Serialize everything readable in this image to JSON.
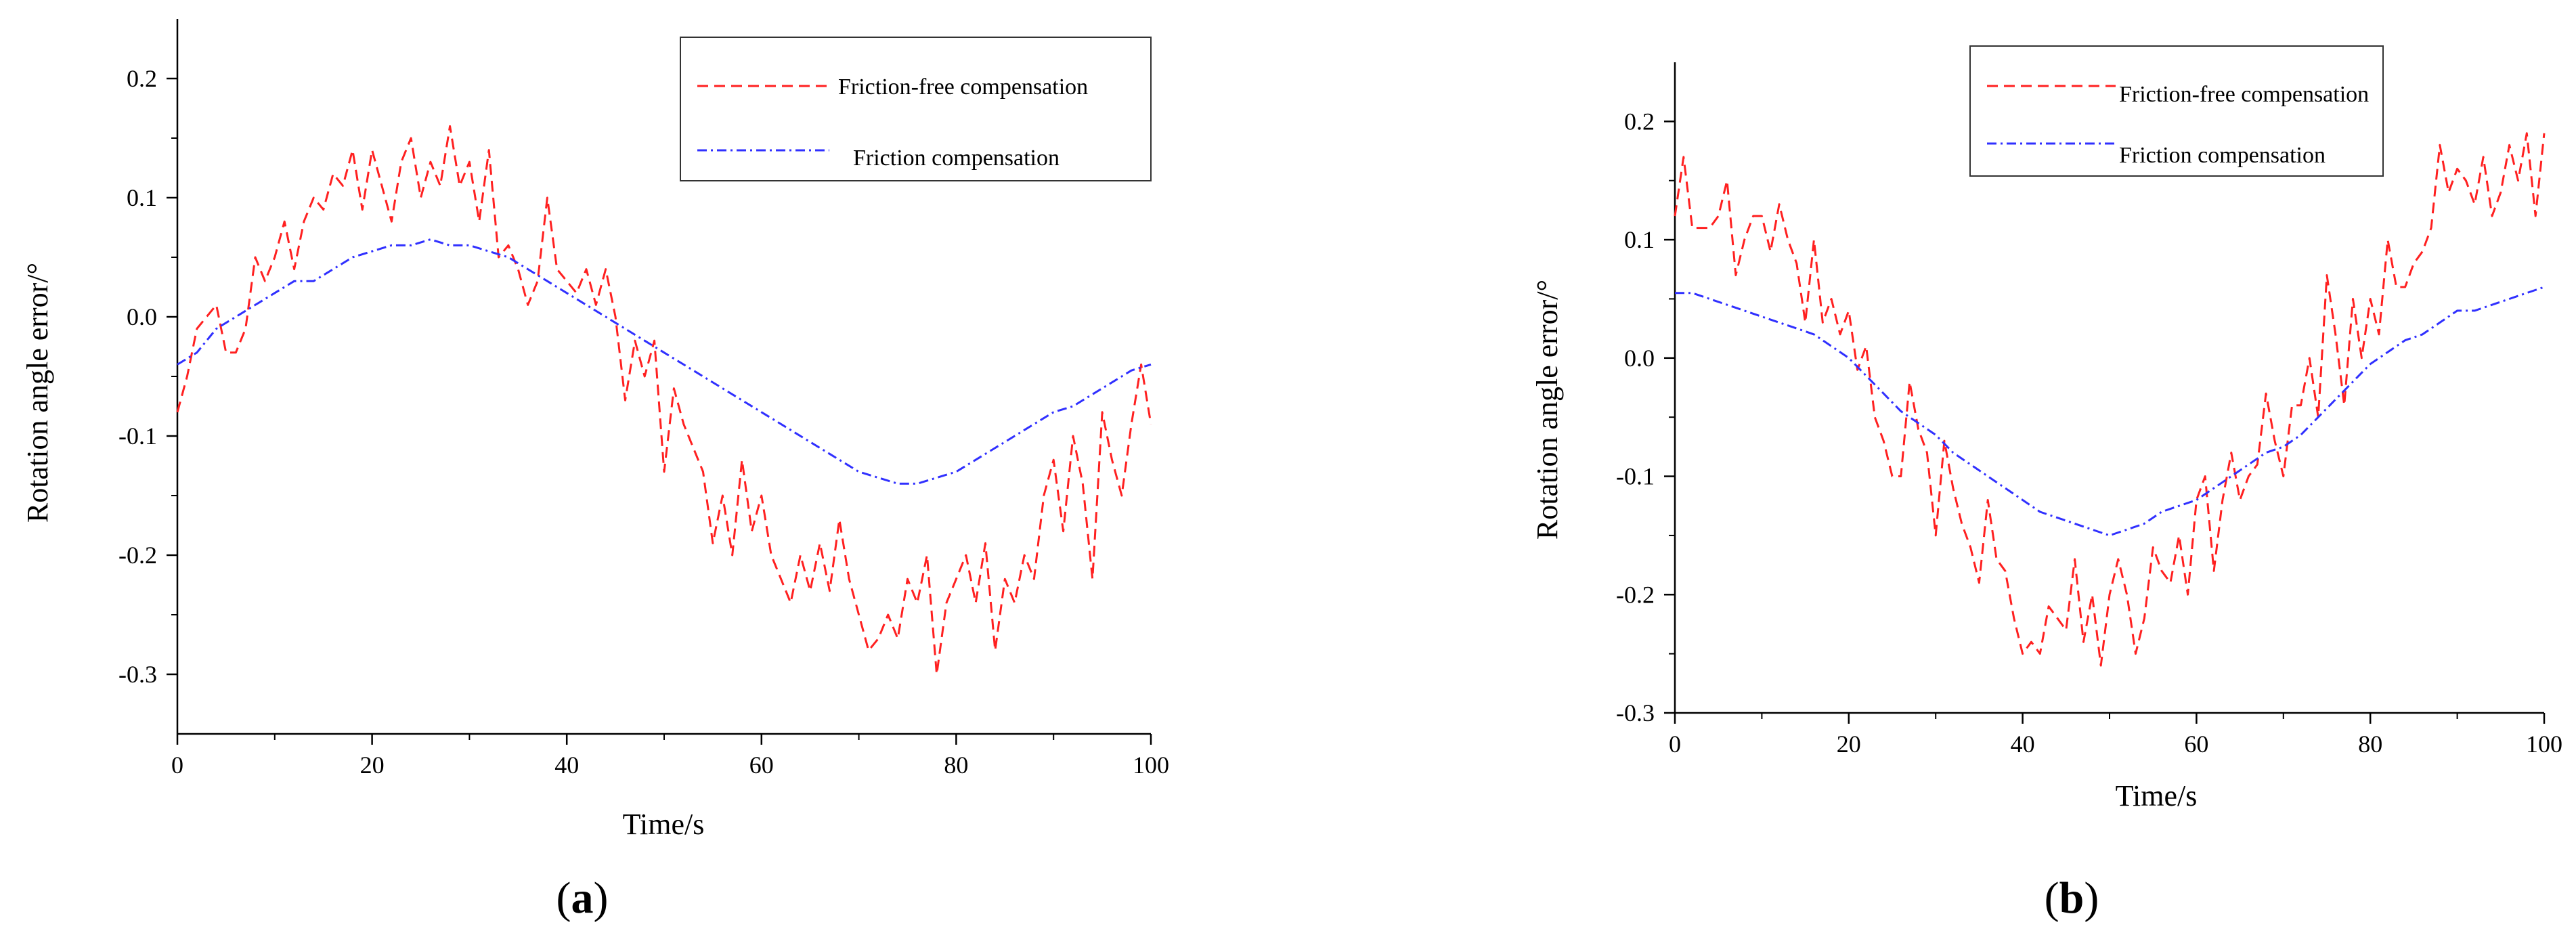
{
  "chart_data": [
    {
      "type": "line",
      "panel_label": "a",
      "xlabel": "Time/s",
      "ylabel": "Rotation angle error/°",
      "xlim": [
        0,
        100
      ],
      "ylim": [
        -0.35,
        0.25
      ],
      "xticks": [
        0,
        20,
        40,
        60,
        80,
        100
      ],
      "xtick_labels": [
        "0",
        "20",
        "40",
        "60",
        "80",
        "100"
      ],
      "yticks": [
        0.2,
        0.1,
        0.0,
        -0.1,
        -0.2,
        -0.3
      ],
      "ytick_labels": [
        "0.2",
        "0.1",
        "0.0",
        "-0.1",
        "-0.2",
        "-0.3"
      ],
      "legend_position": "top-right",
      "series": [
        {
          "name": "Friction-free compensation",
          "color": "#ff2020",
          "style": "dashed",
          "x": [
            0,
            1,
            2,
            3,
            4,
            5,
            6,
            7,
            8,
            9,
            10,
            11,
            12,
            13,
            14,
            15,
            16,
            17,
            18,
            19,
            20,
            21,
            22,
            23,
            24,
            25,
            26,
            27,
            28,
            29,
            30,
            31,
            32,
            33,
            34,
            35,
            36,
            37,
            38,
            39,
            40,
            41,
            42,
            43,
            44,
            45,
            46,
            47,
            48,
            49,
            50,
            51,
            52,
            53,
            54,
            55,
            56,
            57,
            58,
            59,
            60,
            61,
            62,
            63,
            64,
            65,
            66,
            67,
            68,
            69,
            70,
            71,
            72,
            73,
            74,
            75,
            76,
            77,
            78,
            79,
            80,
            81,
            82,
            83,
            84,
            85,
            86,
            87,
            88,
            89,
            90,
            91,
            92,
            93,
            94,
            95,
            96,
            97,
            98,
            99,
            100
          ],
          "y": [
            -0.08,
            -0.05,
            -0.01,
            0.0,
            0.01,
            -0.03,
            -0.03,
            -0.01,
            0.05,
            0.03,
            0.05,
            0.08,
            0.04,
            0.08,
            0.1,
            0.09,
            0.12,
            0.11,
            0.14,
            0.09,
            0.14,
            0.11,
            0.08,
            0.13,
            0.15,
            0.1,
            0.13,
            0.11,
            0.16,
            0.11,
            0.13,
            0.08,
            0.14,
            0.05,
            0.06,
            0.04,
            0.01,
            0.03,
            0.1,
            0.04,
            0.03,
            0.02,
            0.04,
            0.01,
            0.04,
            0.0,
            -0.07,
            -0.02,
            -0.05,
            -0.02,
            -0.13,
            -0.06,
            -0.09,
            -0.11,
            -0.13,
            -0.19,
            -0.15,
            -0.2,
            -0.12,
            -0.18,
            -0.15,
            -0.2,
            -0.22,
            -0.24,
            -0.2,
            -0.23,
            -0.19,
            -0.23,
            -0.17,
            -0.22,
            -0.25,
            -0.28,
            -0.27,
            -0.25,
            -0.27,
            -0.22,
            -0.24,
            -0.2,
            -0.3,
            -0.24,
            -0.22,
            -0.2,
            -0.24,
            -0.19,
            -0.28,
            -0.22,
            -0.24,
            -0.2,
            -0.22,
            -0.15,
            -0.12,
            -0.18,
            -0.1,
            -0.14,
            -0.22,
            -0.08,
            -0.12,
            -0.15,
            -0.09,
            -0.04,
            -0.09
          ]
        },
        {
          "name": "Friction compensation",
          "color": "#3030ff",
          "style": "dash-dot",
          "x": [
            0,
            2,
            4,
            6,
            8,
            10,
            12,
            14,
            16,
            18,
            20,
            22,
            24,
            26,
            28,
            30,
            32,
            34,
            36,
            38,
            40,
            42,
            44,
            46,
            48,
            50,
            52,
            54,
            56,
            58,
            60,
            62,
            64,
            66,
            68,
            70,
            72,
            74,
            76,
            78,
            80,
            82,
            84,
            86,
            88,
            90,
            92,
            94,
            96,
            98,
            100
          ],
          "y": [
            -0.04,
            -0.03,
            -0.01,
            0.0,
            0.01,
            0.02,
            0.03,
            0.03,
            0.04,
            0.05,
            0.055,
            0.06,
            0.06,
            0.065,
            0.06,
            0.06,
            0.055,
            0.05,
            0.04,
            0.03,
            0.02,
            0.01,
            0.0,
            -0.01,
            -0.02,
            -0.03,
            -0.04,
            -0.05,
            -0.06,
            -0.07,
            -0.08,
            -0.09,
            -0.1,
            -0.11,
            -0.12,
            -0.13,
            -0.135,
            -0.14,
            -0.14,
            -0.135,
            -0.13,
            -0.12,
            -0.11,
            -0.1,
            -0.09,
            -0.08,
            -0.075,
            -0.065,
            -0.055,
            -0.045,
            -0.04
          ]
        }
      ]
    },
    {
      "type": "line",
      "panel_label": "b",
      "xlabel": "Time/s",
      "ylabel": "Rotation angle error/°",
      "xlim": [
        0,
        100
      ],
      "ylim": [
        -0.3,
        0.25
      ],
      "xticks": [
        0,
        20,
        40,
        60,
        80,
        100
      ],
      "xtick_labels": [
        "0",
        "20",
        "40",
        "60",
        "80",
        "100"
      ],
      "yticks": [
        0.2,
        0.1,
        0.0,
        -0.1,
        -0.2,
        -0.3
      ],
      "ytick_labels": [
        "0.2",
        "0.1",
        "0.0",
        "-0.1",
        "-0.2",
        "-0.3"
      ],
      "legend_position": "top-right",
      "series": [
        {
          "name": "Friction-free compensation",
          "color": "#ff2020",
          "style": "dashed",
          "x": [
            0,
            1,
            2,
            3,
            4,
            5,
            6,
            7,
            8,
            9,
            10,
            11,
            12,
            13,
            14,
            15,
            16,
            17,
            18,
            19,
            20,
            21,
            22,
            23,
            24,
            25,
            26,
            27,
            28,
            29,
            30,
            31,
            32,
            33,
            34,
            35,
            36,
            37,
            38,
            39,
            40,
            41,
            42,
            43,
            44,
            45,
            46,
            47,
            48,
            49,
            50,
            51,
            52,
            53,
            54,
            55,
            56,
            57,
            58,
            59,
            60,
            61,
            62,
            63,
            64,
            65,
            66,
            67,
            68,
            69,
            70,
            71,
            72,
            73,
            74,
            75,
            76,
            77,
            78,
            79,
            80,
            81,
            82,
            83,
            84,
            85,
            86,
            87,
            88,
            89,
            90,
            91,
            92,
            93,
            94,
            95,
            96,
            97,
            98,
            99,
            100
          ],
          "y": [
            0.12,
            0.17,
            0.11,
            0.11,
            0.11,
            0.12,
            0.15,
            0.07,
            0.1,
            0.12,
            0.12,
            0.09,
            0.13,
            0.1,
            0.08,
            0.03,
            0.1,
            0.03,
            0.05,
            0.02,
            0.04,
            -0.01,
            0.01,
            -0.05,
            -0.07,
            -0.1,
            -0.1,
            -0.02,
            -0.06,
            -0.08,
            -0.15,
            -0.07,
            -0.11,
            -0.14,
            -0.16,
            -0.19,
            -0.12,
            -0.17,
            -0.18,
            -0.22,
            -0.25,
            -0.24,
            -0.25,
            -0.21,
            -0.22,
            -0.23,
            -0.17,
            -0.24,
            -0.2,
            -0.26,
            -0.2,
            -0.17,
            -0.2,
            -0.25,
            -0.22,
            -0.16,
            -0.18,
            -0.19,
            -0.15,
            -0.2,
            -0.12,
            -0.1,
            -0.18,
            -0.12,
            -0.08,
            -0.12,
            -0.1,
            -0.09,
            -0.03,
            -0.07,
            -0.1,
            -0.04,
            -0.04,
            0.0,
            -0.05,
            0.07,
            0.02,
            -0.04,
            0.05,
            0.0,
            0.05,
            0.02,
            0.1,
            0.06,
            0.06,
            0.08,
            0.09,
            0.11,
            0.18,
            0.14,
            0.16,
            0.15,
            0.13,
            0.17,
            0.12,
            0.14,
            0.18,
            0.15,
            0.19,
            0.12,
            0.19
          ]
        },
        {
          "name": "Friction compensation",
          "color": "#3030ff",
          "style": "dash-dot",
          "x": [
            0,
            2,
            4,
            6,
            8,
            10,
            12,
            14,
            16,
            18,
            20,
            22,
            24,
            26,
            28,
            30,
            32,
            34,
            36,
            38,
            40,
            42,
            44,
            46,
            48,
            50,
            52,
            54,
            56,
            58,
            60,
            62,
            64,
            66,
            68,
            70,
            72,
            74,
            76,
            78,
            80,
            82,
            84,
            86,
            88,
            90,
            92,
            94,
            96,
            98,
            100
          ],
          "y": [
            0.055,
            0.055,
            0.05,
            0.045,
            0.04,
            0.035,
            0.03,
            0.025,
            0.02,
            0.01,
            0.0,
            -0.015,
            -0.03,
            -0.045,
            -0.055,
            -0.065,
            -0.08,
            -0.09,
            -0.1,
            -0.11,
            -0.12,
            -0.13,
            -0.135,
            -0.14,
            -0.145,
            -0.15,
            -0.145,
            -0.14,
            -0.13,
            -0.125,
            -0.12,
            -0.11,
            -0.1,
            -0.09,
            -0.08,
            -0.075,
            -0.065,
            -0.05,
            -0.035,
            -0.02,
            -0.005,
            0.005,
            0.015,
            0.02,
            0.03,
            0.04,
            0.04,
            0.045,
            0.05,
            0.055,
            0.06
          ]
        }
      ]
    }
  ]
}
